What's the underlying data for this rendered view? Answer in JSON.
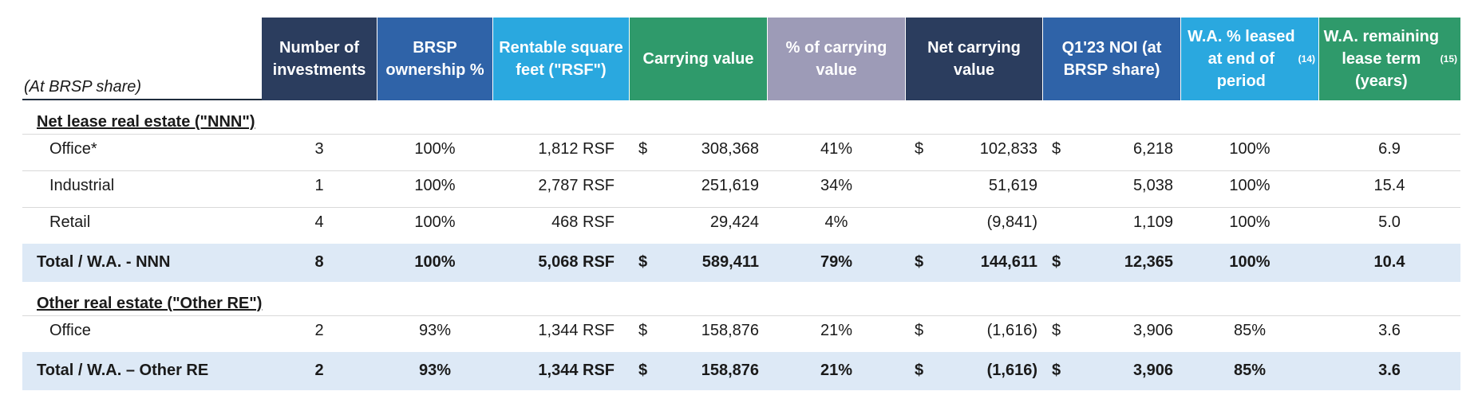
{
  "header_note": "(At BRSP share)",
  "columns": [
    {
      "label": "Number of investments",
      "bg": "#2b3d5e"
    },
    {
      "label": "BRSP ownership %",
      "bg": "#2f63a8"
    },
    {
      "label": "Rentable square feet (\"RSF\")",
      "bg": "#2aa8df"
    },
    {
      "label": "Carrying value",
      "bg": "#2f9a6b"
    },
    {
      "label": "% of carrying value",
      "bg": "#9d9bb7"
    },
    {
      "label": "Net carrying value",
      "bg": "#2b3d5e"
    },
    {
      "label": "Q1'23 NOI (at BRSP share)",
      "bg": "#2f63a8"
    },
    {
      "label": "W.A. % leased at end of period",
      "sup": "(14)",
      "bg": "#2aa8df"
    },
    {
      "label": "W.A. remaining lease term (years)",
      "sup": "(15)",
      "bg": "#2f9a6b"
    }
  ],
  "sections": [
    {
      "title": "Net lease real estate (\"NNN\")",
      "rows": [
        {
          "name": "Office*",
          "investments": "3",
          "ownership": "100%",
          "rsf": "1,812 RSF",
          "cv_dollar": "$",
          "carrying_value": "308,368",
          "pct_carrying": "41%",
          "ncv_dollar": "$",
          "net_carrying_value": "102,833",
          "noi_dollar": "$",
          "noi": "6,218",
          "leased": "100%",
          "lease_term": "6.9"
        },
        {
          "name": "Industrial",
          "investments": "1",
          "ownership": "100%",
          "rsf": "2,787 RSF",
          "cv_dollar": "",
          "carrying_value": "251,619",
          "pct_carrying": "34%",
          "ncv_dollar": "",
          "net_carrying_value": "51,619",
          "noi_dollar": "",
          "noi": "5,038",
          "leased": "100%",
          "lease_term": "15.4"
        },
        {
          "name": "Retail",
          "investments": "4",
          "ownership": "100%",
          "rsf": "468 RSF",
          "cv_dollar": "",
          "carrying_value": "29,424",
          "pct_carrying": "4%",
          "ncv_dollar": "",
          "net_carrying_value": "(9,841)",
          "noi_dollar": "",
          "noi": "1,109",
          "leased": "100%",
          "lease_term": "5.0"
        }
      ],
      "total": {
        "name": "Total / W.A. - NNN",
        "investments": "8",
        "ownership": "100%",
        "rsf": "5,068 RSF",
        "cv_dollar": "$",
        "carrying_value": "589,411",
        "pct_carrying": "79%",
        "ncv_dollar": "$",
        "net_carrying_value": "144,611",
        "noi_dollar": "$",
        "noi": "12,365",
        "leased": "100%",
        "lease_term": "10.4"
      }
    },
    {
      "title": "Other real estate (\"Other RE\")",
      "rows": [
        {
          "name": "Office",
          "investments": "2",
          "ownership": "93%",
          "rsf": "1,344 RSF",
          "cv_dollar": "$",
          "carrying_value": "158,876",
          "pct_carrying": "21%",
          "ncv_dollar": "$",
          "net_carrying_value": "(1,616)",
          "noi_dollar": "$",
          "noi": "3,906",
          "leased": "85%",
          "lease_term": "3.6"
        }
      ],
      "total": {
        "name": "Total / W.A. – Other RE",
        "investments": "2",
        "ownership": "93%",
        "rsf": "1,344 RSF",
        "cv_dollar": "$",
        "carrying_value": "158,876",
        "pct_carrying": "21%",
        "ncv_dollar": "$",
        "net_carrying_value": "(1,616)",
        "noi_dollar": "$",
        "noi": "3,906",
        "leased": "85%",
        "lease_term": "3.6"
      }
    }
  ]
}
